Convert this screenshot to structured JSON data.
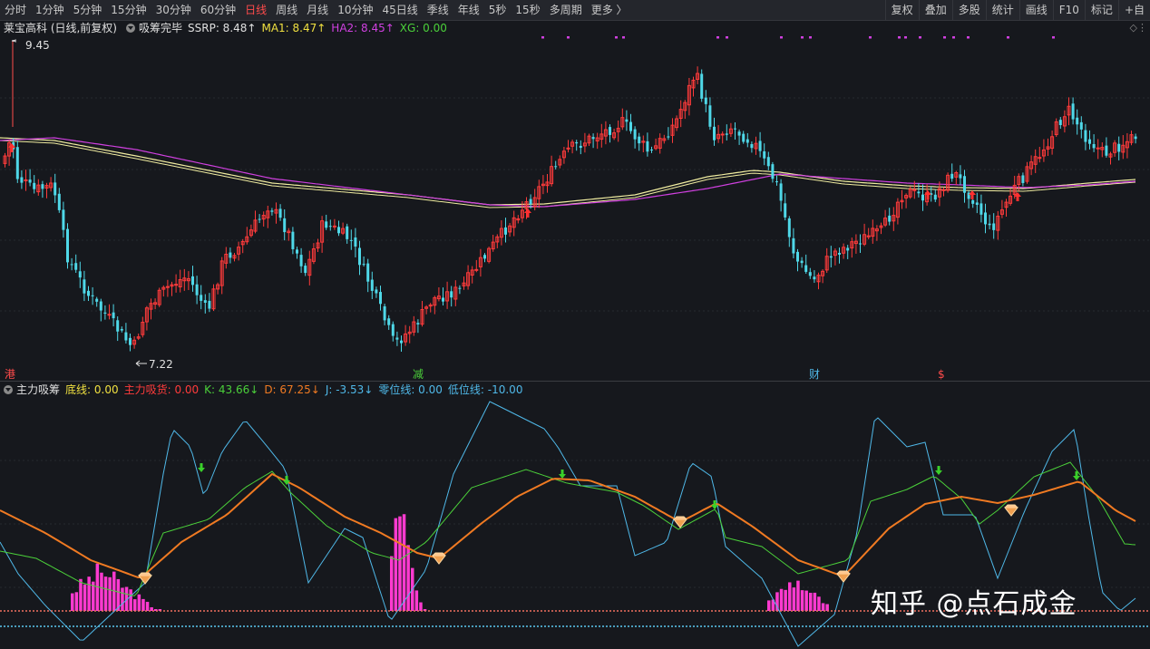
{
  "toolbar": {
    "periods": [
      "分时",
      "1分钟",
      "5分钟",
      "15分钟",
      "30分钟",
      "60分钟",
      "日线",
      "周线",
      "月线",
      "10分钟",
      "45日线",
      "季线",
      "年线",
      "5秒",
      "15秒",
      "多周期",
      "更多 〉"
    ],
    "active_period": "日线",
    "tools": [
      "复权",
      "叠加",
      "多股",
      "统计",
      "画线",
      "F10",
      "标记",
      "+自"
    ]
  },
  "main_info": {
    "stock": "莱宝高科 (日线,前复权)",
    "indicator": "吸筹完毕",
    "ssrp": "SSRP: 8.48↑",
    "ma1": "MA1: 8.47↑",
    "ha2": "HA2: 8.45↑",
    "xg": "XG: 0.00"
  },
  "main_chart": {
    "high_label": "9.45",
    "low_label": "7.22",
    "events": [
      "港",
      "减",
      "财",
      "$"
    ],
    "colors": {
      "up": "#ff3b3b",
      "down": "#4fd8e8",
      "ma": "#f0eca0",
      "ha": "#d040e0",
      "xg": "#d040e0"
    }
  },
  "sub_info": {
    "name": "主力吸筹",
    "bottom_line": "底线: 0.00",
    "main_absorb": "主力吸货: 0.00",
    "k": "K: 43.66↓",
    "d": "D: 67.25↓",
    "j": "J: -3.53↓",
    "zero_line": "零位线: 0.00",
    "low_line": "低位线: -10.00"
  },
  "watermark": "知乎 @点石成金",
  "colors": {
    "k": "#4bd03a",
    "d": "#f07a22",
    "j": "#4fb8e8",
    "bar": "#ff3ad0",
    "zero": "#f07060",
    "low": "#5ac8f0"
  }
}
